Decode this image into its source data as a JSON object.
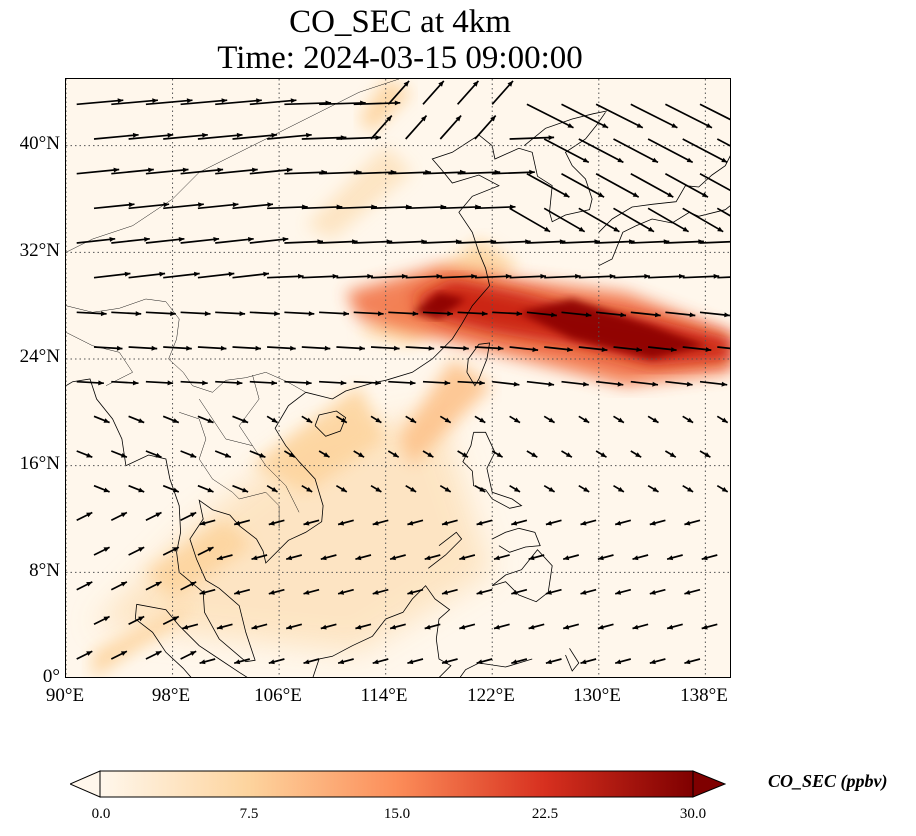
{
  "title": {
    "line1": "CO_SEC at 4km",
    "line2": "Time: 2024-03-15 09:00:00"
  },
  "map": {
    "projection": "PlateCarree",
    "lon_range": [
      90,
      140
    ],
    "lat_range": [
      0,
      45
    ],
    "gridlines": true,
    "coastlines": true,
    "country_borders": true,
    "wind_vectors": true,
    "field_variable": "CO_SEC",
    "plume_description_regions": [
      {
        "lon": 121,
        "lat": 26.5,
        "value": 25
      },
      {
        "lon": 134,
        "lat": 25.5,
        "value": 30
      },
      {
        "lon": 117,
        "lat": 28,
        "value": 26
      }
    ]
  },
  "axes": {
    "y_ticks": [
      "40°N",
      "32°N",
      "24°N",
      "16°N",
      "8°N",
      "0°"
    ],
    "y_values": [
      40,
      32,
      24,
      16,
      8,
      0
    ],
    "x_ticks": [
      "90°E",
      "98°E",
      "106°E",
      "114°E",
      "122°E",
      "130°E",
      "138°E"
    ],
    "x_values": [
      90,
      98,
      106,
      114,
      122,
      130,
      138
    ]
  },
  "colorbar": {
    "label": "CO_SEC (ppbv)",
    "ticks": [
      "0.0",
      "7.5",
      "15.0",
      "22.5",
      "30.0"
    ],
    "tick_values": [
      0,
      7.5,
      15,
      22.5,
      30
    ],
    "range": [
      0,
      30
    ],
    "extend": "both",
    "colormap": "OrRd",
    "colors": [
      "#fff7ec",
      "#fdd49e",
      "#fc8d59",
      "#d7301f",
      "#7f0000"
    ]
  }
}
